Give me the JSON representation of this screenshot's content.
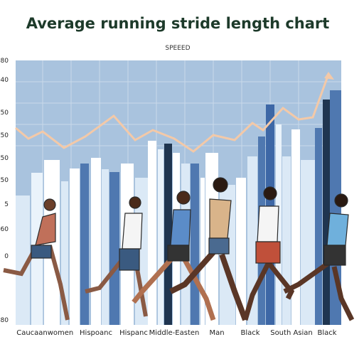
{
  "title": "Average running stride length chart",
  "subtitle": "SPEEED",
  "axis_labels": [
    "80",
    "40",
    "50",
    "50",
    "50",
    "50",
    "5",
    "60",
    "0",
    "80"
  ],
  "labels": [
    "Caucaan",
    "women",
    "Hispoanc",
    "Hispanc",
    "Middle-Easten",
    "Man",
    "Black",
    "South Asian",
    "Black"
  ]
}
